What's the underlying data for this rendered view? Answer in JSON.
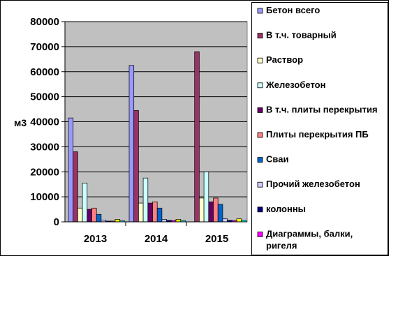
{
  "chart_data": {
    "type": "bar",
    "title": "",
    "xlabel": "",
    "ylabel": "м3",
    "ylim": [
      0,
      80000
    ],
    "yticks": [
      0,
      10000,
      20000,
      30000,
      40000,
      50000,
      60000,
      70000,
      80000
    ],
    "grid": true,
    "legend_position": "right",
    "categories": [
      "2013",
      "2014",
      "2015"
    ],
    "series": [
      {
        "name": "Бетон всего",
        "color": "#9999FF",
        "values": [
          41500,
          62500,
          0
        ]
      },
      {
        "name": "В т.ч. товарный",
        "color": "#993366",
        "values": [
          28000,
          44500,
          68000
        ]
      },
      {
        "name": "Раствор",
        "color": "#FFFFCC",
        "values": [
          5500,
          7500,
          9500
        ]
      },
      {
        "name": " Железобетон",
        "color": "#CCFFFF",
        "values": [
          15500,
          17500,
          20000
        ]
      },
      {
        "name": "В т.ч. плиты перекрытия",
        "color": "#660066",
        "values": [
          5000,
          7500,
          8000
        ]
      },
      {
        "name": "Плиты перекрытия ПБ",
        "color": "#FF8080",
        "values": [
          5500,
          8000,
          9500
        ]
      },
      {
        "name": "Сваи",
        "color": "#0066CC",
        "values": [
          3000,
          5500,
          7000
        ]
      },
      {
        "name": "Прочий железобетон",
        "color": "#CCCCFF",
        "values": [
          700,
          1000,
          1200
        ]
      },
      {
        "name": "колонны",
        "color": "#000080",
        "values": [
          300,
          600,
          600
        ]
      },
      {
        "name": "Диаграммы, балки, ригеля",
        "color": "#FF00FF",
        "values": [
          300,
          500,
          500
        ]
      },
      {
        "name": "",
        "color": "#FFFF00",
        "values": [
          1000,
          1000,
          1200
        ]
      },
      {
        "name": "",
        "color": "#00FFFF",
        "values": [
          400,
          500,
          600
        ]
      }
    ]
  }
}
